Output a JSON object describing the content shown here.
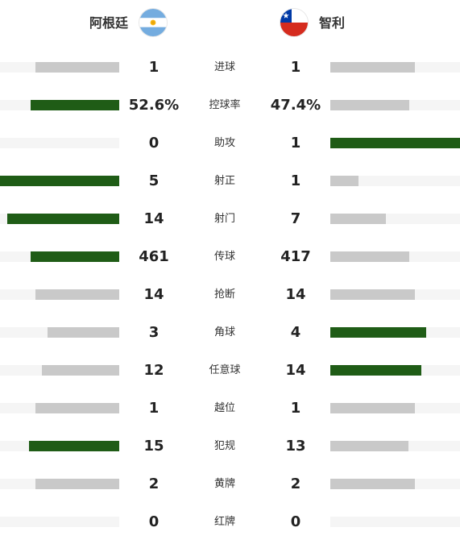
{
  "teams": {
    "home": {
      "name": "阿根廷",
      "flag_icon": "argentina-flag-icon"
    },
    "away": {
      "name": "智利",
      "flag_icon": "chile-flag-icon"
    }
  },
  "colors": {
    "leading_bar": "#1f5c16",
    "trailing_bar": "#c9c9c9",
    "track": "#f5f5f5"
  },
  "stats": [
    {
      "label": "进球",
      "home": "1",
      "away": "1",
      "home_bar_pct": 70,
      "away_bar_pct": 65,
      "home_leads": false,
      "away_leads": false
    },
    {
      "label": "控球率",
      "home": "52.6%",
      "away": "47.4%",
      "home_bar_pct": 74,
      "away_bar_pct": 61,
      "home_leads": true,
      "away_leads": false
    },
    {
      "label": "助攻",
      "home": "0",
      "away": "1",
      "home_bar_pct": 0,
      "away_bar_pct": 100,
      "home_leads": false,
      "away_leads": true
    },
    {
      "label": "射正",
      "home": "5",
      "away": "1",
      "home_bar_pct": 100,
      "away_bar_pct": 22,
      "home_leads": true,
      "away_leads": false
    },
    {
      "label": "射门",
      "home": "14",
      "away": "7",
      "home_bar_pct": 94,
      "away_bar_pct": 43,
      "home_leads": true,
      "away_leads": false
    },
    {
      "label": "传球",
      "home": "461",
      "away": "417",
      "home_bar_pct": 74,
      "away_bar_pct": 61,
      "home_leads": true,
      "away_leads": false
    },
    {
      "label": "抢断",
      "home": "14",
      "away": "14",
      "home_bar_pct": 70,
      "away_bar_pct": 65,
      "home_leads": false,
      "away_leads": false
    },
    {
      "label": "角球",
      "home": "3",
      "away": "4",
      "home_bar_pct": 60,
      "away_bar_pct": 74,
      "home_leads": false,
      "away_leads": true
    },
    {
      "label": "任意球",
      "home": "12",
      "away": "14",
      "home_bar_pct": 65,
      "away_bar_pct": 70,
      "home_leads": false,
      "away_leads": true
    },
    {
      "label": "越位",
      "home": "1",
      "away": "1",
      "home_bar_pct": 70,
      "away_bar_pct": 65,
      "home_leads": false,
      "away_leads": false
    },
    {
      "label": "犯规",
      "home": "15",
      "away": "13",
      "home_bar_pct": 76,
      "away_bar_pct": 60,
      "home_leads": true,
      "away_leads": false
    },
    {
      "label": "黄牌",
      "home": "2",
      "away": "2",
      "home_bar_pct": 70,
      "away_bar_pct": 65,
      "home_leads": false,
      "away_leads": false
    },
    {
      "label": "红牌",
      "home": "0",
      "away": "0",
      "home_bar_pct": 0,
      "away_bar_pct": 0,
      "home_leads": false,
      "away_leads": false
    }
  ]
}
